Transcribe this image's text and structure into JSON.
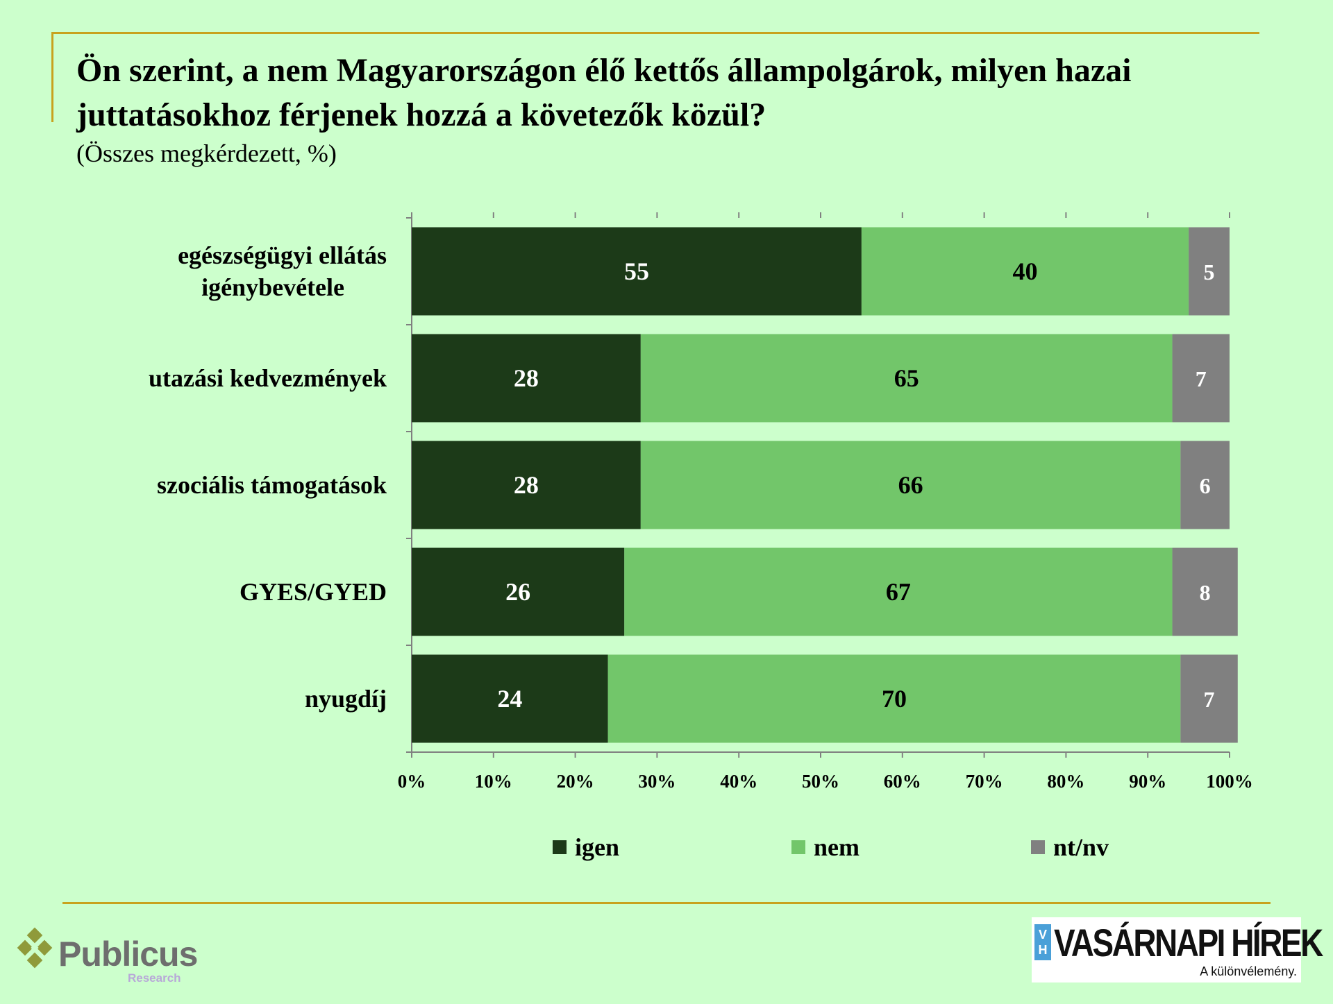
{
  "title": "Ön szerint, a nem Magyarországon élő kettős állampolgárok, milyen hazai juttatásokhoz férjenek hozzá a követezők közül?",
  "subtitle": "(Összes megkérdezett, %)",
  "chart_data": {
    "type": "bar",
    "orientation": "horizontal",
    "stacked": "percent",
    "categories": [
      "egészségügyi ellátás igénybevétele",
      "utazási kedvezmények",
      "szociális támogatások",
      "GYES/GYED",
      "nyugdíj"
    ],
    "category_lines": [
      [
        "egészségügyi ellátás",
        "igénybevétele"
      ],
      [
        "utazási kedvezmények"
      ],
      [
        "szociális támogatások"
      ],
      [
        "GYES/GYED"
      ],
      [
        "nyugdíj"
      ]
    ],
    "series": [
      {
        "name": "igen",
        "values": [
          55,
          28,
          28,
          26,
          24
        ],
        "color": "#1c3a18",
        "label_color": "#ffffff"
      },
      {
        "name": "nem",
        "values": [
          40,
          65,
          66,
          67,
          70
        ],
        "color": "#72c66a",
        "label_color": "#000000"
      },
      {
        "name": "nt/nv",
        "values": [
          5,
          7,
          6,
          8,
          7
        ],
        "color": "#808080",
        "label_color": "#ffffff"
      }
    ],
    "xlim": [
      0,
      100
    ],
    "x_ticks": [
      "0%",
      "10%",
      "20%",
      "30%",
      "40%",
      "50%",
      "60%",
      "70%",
      "80%",
      "90%",
      "100%"
    ],
    "grid": false,
    "legend_position": "bottom"
  },
  "logos": {
    "publicus_name": "Publicus",
    "publicus_sub": "Research",
    "vh_mark": [
      "V",
      "H"
    ],
    "vh_name": "VASÁRNAPI HÍREK",
    "vh_tagline": "A különvélemény."
  },
  "colors": {
    "background": "#ccffcc",
    "accent_rule": "#c8a21e"
  }
}
